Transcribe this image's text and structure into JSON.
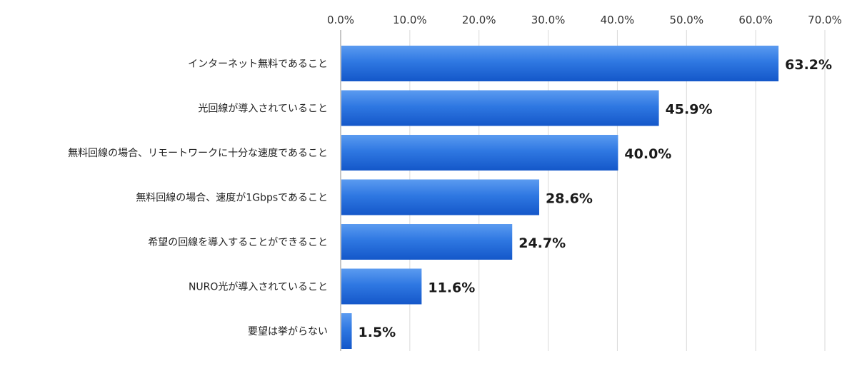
{
  "chart_data": {
    "type": "bar",
    "orientation": "horizontal",
    "title": "",
    "xlabel": "",
    "ylabel": "",
    "categories": [
      "インターネット無料であること",
      "光回線が導入されていること",
      "無料回線の場合、リモートワークに十分な速度であること",
      "無料回線の場合、速度が1Gbpsであること",
      "希望の回線を導入することができること",
      "NURO光が導入されていること",
      "要望は挙がらない"
    ],
    "values": [
      63.2,
      45.9,
      40.0,
      28.6,
      24.7,
      11.6,
      1.5
    ],
    "value_labels": [
      "63.2%",
      "45.9%",
      "40.0%",
      "28.6%",
      "24.7%",
      "11.6%",
      "1.5%"
    ],
    "xlim": [
      0,
      70
    ],
    "tick_values": [
      0,
      10,
      20,
      30,
      40,
      50,
      60,
      70
    ],
    "tick_labels": [
      "0.0%",
      "10.0%",
      "20.0%",
      "30.0%",
      "40.0%",
      "50.0%",
      "60.0%",
      "70.0%"
    ],
    "axis_position": "top",
    "grid": true,
    "legend": false,
    "colors": {
      "bar_top": "#5b9bf0",
      "bar_bottom": "#1457c9",
      "grid": "#d9d9d9",
      "axis": "#8c8c8c"
    }
  }
}
